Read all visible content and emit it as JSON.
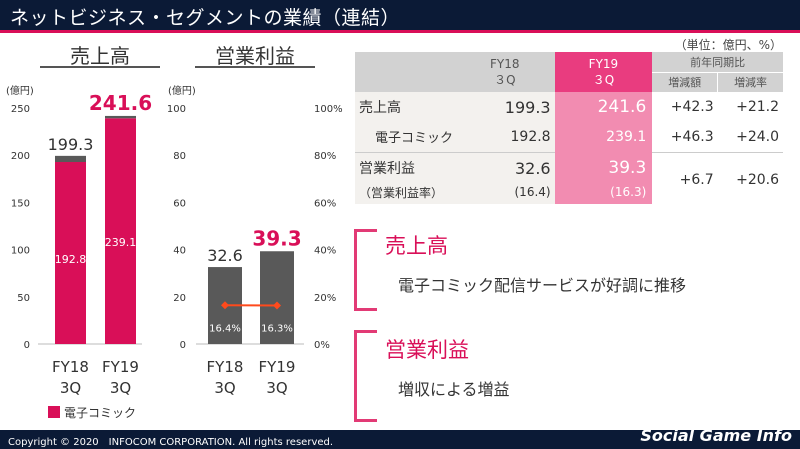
{
  "title": "ネットビジネス・セグメントの業績（連結）",
  "footer": {
    "copyright": "Copyright © 2020　INFOCOM CORPORATION. All rights reserved.",
    "watermark": "Social Game Info"
  },
  "colors": {
    "brand_pink": "#d90f58",
    "navy": "#0b1a36",
    "bar_gray": "#595959"
  },
  "chart_data": [
    {
      "type": "bar",
      "title": "売上高",
      "unit": "(億円)",
      "categories": [
        "FY18\n3Q",
        "FY19\n3Q"
      ],
      "series": [
        {
          "name": "電子コミック",
          "values": [
            192.8,
            239.1
          ]
        },
        {
          "values": [
            6.5,
            2.5
          ]
        }
      ],
      "totals": [
        "199.3",
        "241.6"
      ],
      "inner_labels": [
        "192.8",
        "239.1"
      ],
      "yticks": [
        "0",
        "50",
        "100",
        "150",
        "200",
        "250"
      ],
      "ylim": [
        0,
        250
      ],
      "legend": "電子コミック",
      "legend_position": "bottom-left"
    },
    {
      "type": "bar",
      "title": "営業利益",
      "unit": "(億円)",
      "categories": [
        "FY18\n3Q",
        "FY19\n3Q"
      ],
      "values": [
        32.6,
        39.3
      ],
      "value_labels": [
        "32.6",
        "39.3"
      ],
      "ratio_series": {
        "values": [
          16.4,
          16.3
        ],
        "labels": [
          "16.4%",
          "16.3%"
        ]
      },
      "yticks": [
        "0",
        "20",
        "40",
        "60",
        "80",
        "100"
      ],
      "ylim": [
        0,
        100
      ],
      "y2ticks": [
        "0%",
        "20%",
        "40%",
        "60%",
        "80%",
        "100%"
      ],
      "y2lim": [
        0,
        100
      ]
    }
  ],
  "table": {
    "unit_note": "（単位：億円、%）",
    "col_fy18": [
      "FY18",
      "３Q"
    ],
    "col_fy19": [
      "FY19",
      "３Q"
    ],
    "yoy_header": "前年同期比",
    "yoy_amount": "増減額",
    "yoy_rate": "増減率",
    "rows": [
      {
        "label": "売上高",
        "fy18": "199.3",
        "fy19": "241.6",
        "amount": "+42.3",
        "rate": "+21.2"
      },
      {
        "label": "電子コミック",
        "fy18": "192.8",
        "fy19": "239.1",
        "amount": "+46.3",
        "rate": "+24.0"
      },
      {
        "label": "営業利益",
        "fy18": "32.6",
        "fy19": "39.3",
        "amount": "+6.7",
        "rate": "+20.6"
      },
      {
        "label": "（営業利益率）",
        "fy18": "(16.4)",
        "fy19": "(16.3)",
        "amount": "",
        "rate": ""
      }
    ]
  },
  "highlights": [
    {
      "title": "売上高",
      "text": "電子コミック配信サービスが好調に推移"
    },
    {
      "title": "営業利益",
      "text": "増収による増益"
    }
  ]
}
